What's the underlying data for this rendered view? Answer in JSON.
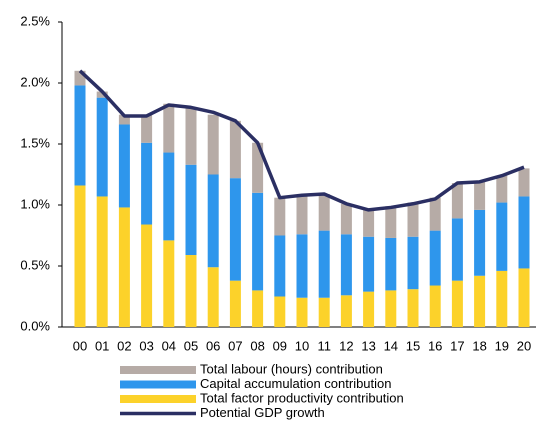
{
  "chart_data": {
    "type": "stacked_bar_line",
    "categories": [
      "00",
      "01",
      "02",
      "03",
      "04",
      "05",
      "06",
      "07",
      "08",
      "09",
      "10",
      "11",
      "12",
      "13",
      "14",
      "15",
      "16",
      "17",
      "18",
      "19",
      "20"
    ],
    "series": [
      {
        "name": "Total labour (hours) contribution",
        "type": "bar",
        "color": "#b6aba6",
        "values": [
          0.12,
          0.05,
          0.08,
          0.23,
          0.4,
          0.47,
          0.49,
          0.47,
          0.41,
          0.31,
          0.31,
          0.3,
          0.25,
          0.23,
          0.26,
          0.28,
          0.27,
          0.29,
          0.24,
          0.22,
          0.23
        ]
      },
      {
        "name": "Capital accumulation contribution",
        "type": "bar",
        "color": "#2e96ec",
        "values": [
          0.82,
          0.81,
          0.68,
          0.67,
          0.72,
          0.74,
          0.76,
          0.84,
          0.8,
          0.5,
          0.52,
          0.55,
          0.5,
          0.45,
          0.43,
          0.43,
          0.45,
          0.51,
          0.54,
          0.56,
          0.59
        ]
      },
      {
        "name": "Total factor productivity contribution",
        "type": "bar",
        "color": "#fcd22a",
        "values": [
          1.16,
          1.07,
          0.98,
          0.84,
          0.71,
          0.59,
          0.49,
          0.38,
          0.3,
          0.25,
          0.24,
          0.24,
          0.26,
          0.29,
          0.3,
          0.31,
          0.34,
          0.38,
          0.42,
          0.46,
          0.48
        ]
      },
      {
        "name": "Potential GDP growth",
        "type": "line",
        "color": "#2b2f63",
        "values": [
          2.1,
          1.93,
          1.73,
          1.73,
          1.82,
          1.8,
          1.76,
          1.69,
          1.51,
          1.06,
          1.08,
          1.09,
          1.01,
          0.96,
          0.98,
          1.01,
          1.05,
          1.18,
          1.19,
          1.24,
          1.31
        ]
      }
    ],
    "ylim": [
      0,
      2.5
    ],
    "yticks": [
      {
        "value": 0,
        "label": "0.0%"
      },
      {
        "value": 0.5,
        "label": "0.5%"
      },
      {
        "value": 1,
        "label": "1.0%"
      },
      {
        "value": 1.5,
        "label": "1.5%"
      },
      {
        "value": 2,
        "label": "2.0%"
      },
      {
        "value": 2.5,
        "label": "2.5%"
      }
    ],
    "grid": false,
    "legend": "bottom"
  }
}
